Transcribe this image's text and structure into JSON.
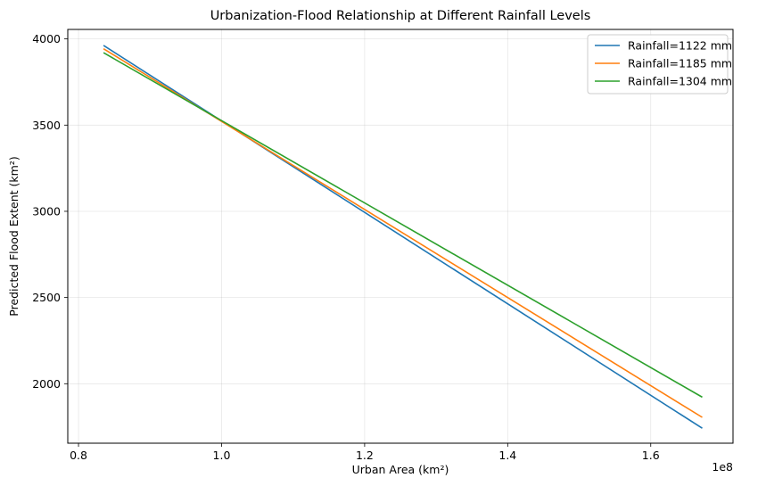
{
  "chart_data": {
    "type": "line",
    "title": "Urbanization-Flood Relationship at Different Rainfall Levels",
    "xlabel": "Urban Area (km²)",
    "ylabel": "Predicted Flood Extent (km²)",
    "x_offset_text": "1e8",
    "xlim": [
      0.785,
      1.715
    ],
    "ylim": [
      1655,
      4055
    ],
    "x_ticks": [
      0.8,
      1.0,
      1.2,
      1.4,
      1.6
    ],
    "x_tick_labels": [
      "0.8",
      "1.0",
      "1.2",
      "1.4",
      "1.6"
    ],
    "y_ticks": [
      2000,
      2500,
      3000,
      3500,
      4000
    ],
    "y_tick_labels": [
      "2000",
      "2500",
      "3000",
      "3500",
      "4000"
    ],
    "grid": true,
    "legend_position": "top-right",
    "series": [
      {
        "name": "Rainfall=1122 mm",
        "color": "#1f77b4",
        "x": [
          0.835,
          1.672
        ],
        "y": [
          3962,
          1742
        ]
      },
      {
        "name": "Rainfall=1185 mm",
        "color": "#ff7f0e",
        "x": [
          0.835,
          1.672
        ],
        "y": [
          3943,
          1805
        ]
      },
      {
        "name": "Rainfall=1304 mm",
        "color": "#2ca02c",
        "x": [
          0.835,
          1.672
        ],
        "y": [
          3920,
          1922
        ]
      }
    ]
  }
}
